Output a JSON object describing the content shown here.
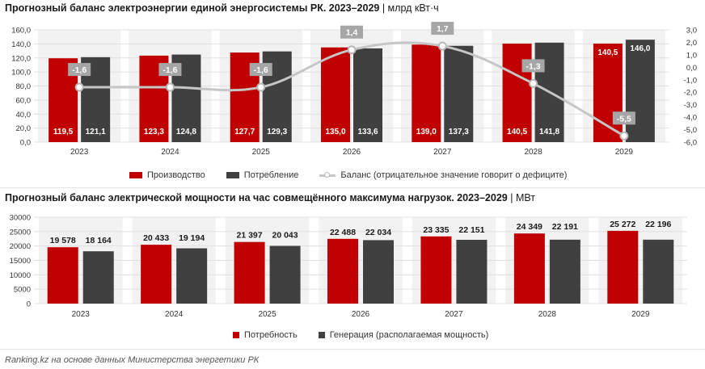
{
  "chart1": {
    "title": "Прогнозный баланс электроэнергии единой энергосистемы РК. 2023–2029",
    "unit": " | млрд кВт·ч",
    "colors": {
      "production": "#c00000",
      "consumption": "#404040",
      "balance": "#c6c6c6"
    },
    "legend": {
      "production": "Производство",
      "consumption": "Потребление",
      "balance": "Баланс (отрицательное значение говорит о дефиците)"
    }
  },
  "chart2": {
    "title": "Прогнозный баланс электрической мощности на час совмещённого максимума нагрузок. 2023–2029",
    "unit": " | МВт",
    "colors": {
      "demand": "#c00000",
      "generation": "#404040"
    },
    "legend": {
      "demand": "Потребность",
      "generation": "Генерация (располагаемая мощность)"
    }
  },
  "footer": "Ranking.kz на основе данных Министерства энергетики РК",
  "chart_data": [
    {
      "type": "bar",
      "title": "Прогнозный баланс электроэнергии единой энергосистемы РК. 2023–2029",
      "categories": [
        "2023",
        "2024",
        "2025",
        "2026",
        "2027",
        "2028",
        "2029"
      ],
      "series": [
        {
          "name": "Производство",
          "values": [
            119.5,
            123.3,
            127.7,
            135.0,
            139.0,
            140.5,
            140.5
          ],
          "labels": [
            "119,5",
            "123,3",
            "127,7",
            "135,0",
            "139,0",
            "140,5",
            "140,5"
          ]
        },
        {
          "name": "Потребление",
          "values": [
            121.1,
            124.8,
            129.3,
            133.6,
            137.3,
            141.8,
            146.0
          ],
          "labels": [
            "121,1",
            "124,8",
            "129,3",
            "133,6",
            "137,3",
            "141,8",
            "146,0"
          ]
        },
        {
          "name": "Баланс (отрицательное значение говорит о дефиците)",
          "type": "line",
          "axis": "right",
          "values": [
            -1.6,
            -1.6,
            -1.6,
            1.4,
            1.7,
            -1.3,
            -5.5
          ],
          "labels": [
            "-1,6",
            "-1,6",
            "-1,6",
            "1,4",
            "1,7",
            "-1,3",
            "-5,5"
          ]
        }
      ],
      "ylim": [
        0,
        160
      ],
      "yticks": [
        "0,0",
        "20,0",
        "40,0",
        "60,0",
        "80,0",
        "100,0",
        "120,0",
        "140,0",
        "160,0"
      ],
      "y2lim": [
        -6,
        3
      ],
      "y2ticks": [
        "-6,0",
        "-5,0",
        "-4,0",
        "-3,0",
        "-2,0",
        "-1,0",
        "0,0",
        "1,0",
        "2,0",
        "3,0"
      ],
      "legend": "bottom",
      "grid": true
    },
    {
      "type": "bar",
      "title": "Прогнозный баланс электрической мощности на час совмещённого максимума нагрузок. 2023–2029",
      "categories": [
        "2023",
        "2024",
        "2025",
        "2026",
        "2027",
        "2028",
        "2029"
      ],
      "series": [
        {
          "name": "Потребность",
          "values": [
            19578,
            20433,
            21397,
            22488,
            23335,
            24349,
            25272
          ],
          "labels": [
            "19 578",
            "20 433",
            "21 397",
            "22 488",
            "23 335",
            "24 349",
            "25 272"
          ]
        },
        {
          "name": "Генерация (располагаемая мощность)",
          "values": [
            18164,
            19194,
            20043,
            22034,
            22151,
            22191,
            22196
          ],
          "labels": [
            "18 164",
            "19 194",
            "20 043",
            "22 034",
            "22 151",
            "22 191",
            "22 196"
          ]
        }
      ],
      "ylim": [
        0,
        30000
      ],
      "yticks": [
        "0",
        "5000",
        "10000",
        "15000",
        "20000",
        "25000",
        "30000"
      ],
      "legend": "bottom",
      "grid": true
    }
  ]
}
